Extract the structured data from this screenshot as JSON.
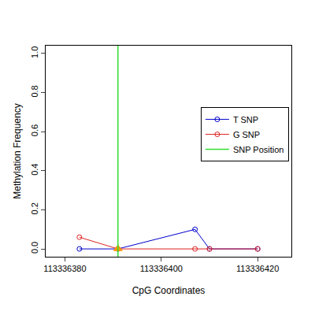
{
  "chart_data": {
    "type": "line",
    "x_label": "CpG Coordinates",
    "y_label": "Methylation Frequency",
    "series": [
      {
        "name": "T SNP",
        "color": "#0000cc",
        "marker": "circle-open",
        "x": [
          113336383,
          113336391,
          113336407,
          113336410,
          113336420
        ],
        "values": [
          0,
          0,
          0.1,
          0,
          0
        ]
      },
      {
        "name": "G SNP",
        "color": "#dd2222",
        "marker": "circle-open",
        "x": [
          113336383,
          113336391,
          113336407,
          113336410,
          113336420
        ],
        "values": [
          0.06,
          0,
          0,
          0,
          0
        ]
      },
      {
        "name": "SNP Position",
        "color": "#33dd33",
        "type": "vline",
        "marker": "triangle",
        "x": [
          113336391
        ],
        "values": [
          0
        ]
      }
    ],
    "xlim": [
      113336376,
      113336427
    ],
    "xticks": [
      113336380,
      113336400,
      113336420
    ],
    "ylim": [
      -0.04,
      1.04
    ],
    "yticks": [
      {
        "value": 0,
        "label": "0.0"
      },
      {
        "value": 0.2,
        "label": "0.2"
      },
      {
        "value": 0.4,
        "label": "0.4"
      },
      {
        "value": 0.6,
        "label": "0.6"
      },
      {
        "value": 0.8,
        "label": "0.8"
      },
      {
        "value": 1,
        "label": "1.0"
      }
    ],
    "grid": false,
    "legend": "right"
  }
}
